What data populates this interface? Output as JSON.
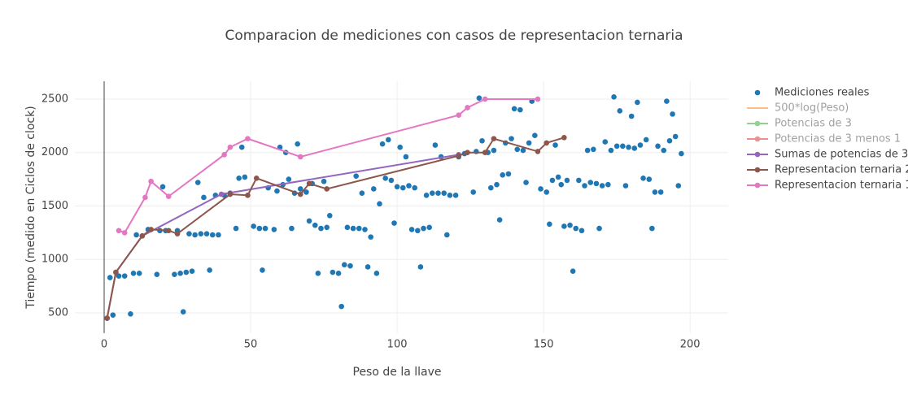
{
  "chart_data": {
    "type": "scatter",
    "title": "Comparacion de mediciones  con casos  de  representacion ternaria",
    "xlabel": "Peso de la llave",
    "ylabel": "Tiempo (medido en Ciclos de clock)",
    "xlim": [
      -10,
      213
    ],
    "ylim": [
      310,
      2667
    ],
    "xticks": [
      0,
      50,
      100,
      150,
      200
    ],
    "yticks": [
      500,
      1000,
      1500,
      2000,
      2500
    ],
    "grid": true,
    "legend": "right",
    "series": [
      {
        "name": "Mediciones reales",
        "color": "#1f77b4",
        "mode": "markers",
        "x": [
          1,
          2,
          3,
          5,
          7,
          9,
          10,
          11,
          12,
          15,
          18,
          19,
          20,
          21,
          24,
          25,
          26,
          27,
          28,
          29,
          30,
          31,
          32,
          33,
          34,
          35,
          36,
          37,
          38,
          39,
          41,
          43,
          45,
          46,
          47,
          48,
          51,
          53,
          54,
          55,
          56,
          58,
          59,
          60,
          61,
          62,
          63,
          64,
          65,
          66,
          67,
          69,
          70,
          71,
          72,
          73,
          74,
          75,
          76,
          77,
          78,
          80,
          81,
          82,
          83,
          84,
          85,
          86,
          87,
          88,
          89,
          90,
          91,
          92,
          93,
          94,
          95,
          96,
          97,
          98,
          99,
          100,
          101,
          102,
          103,
          104,
          105,
          106,
          107,
          108,
          109,
          110,
          111,
          112,
          113,
          114,
          115,
          116,
          117,
          118,
          120,
          121,
          123,
          126,
          127,
          128,
          129,
          131,
          132,
          133,
          134,
          135,
          136,
          137,
          138,
          139,
          140,
          141,
          142,
          143,
          144,
          145,
          146,
          147,
          149,
          151,
          152,
          153,
          154,
          155,
          156,
          157,
          158,
          159,
          160,
          161,
          162,
          163,
          164,
          165,
          166,
          167,
          168,
          169,
          170,
          171,
          172,
          173,
          174,
          175,
          176,
          177,
          178,
          179,
          180,
          181,
          182,
          183,
          184,
          185,
          186,
          187,
          188,
          189,
          190,
          191,
          192,
          193,
          194,
          195,
          196,
          197
        ],
        "values": [
          450,
          830,
          480,
          845,
          845,
          490,
          870,
          1230,
          870,
          1280,
          860,
          1270,
          1680,
          1270,
          860,
          1270,
          870,
          510,
          880,
          1240,
          890,
          1230,
          1720,
          1240,
          1580,
          1240,
          900,
          1230,
          1600,
          1230,
          1600,
          1620,
          1290,
          1760,
          2050,
          1770,
          1310,
          1290,
          900,
          1290,
          1670,
          1280,
          1640,
          2050,
          1700,
          2000,
          1750,
          1290,
          1620,
          2080,
          1660,
          1630,
          1360,
          1710,
          1320,
          870,
          1290,
          1730,
          1300,
          1410,
          880,
          870,
          560,
          950,
          1300,
          940,
          1290,
          1780,
          1290,
          1620,
          1280,
          930,
          1210,
          1660,
          870,
          1520,
          2080,
          1760,
          2120,
          1740,
          1340,
          1680,
          2050,
          1670,
          1960,
          1690,
          1280,
          1670,
          1270,
          930,
          1290,
          1600,
          1300,
          1620,
          2070,
          1620,
          1960,
          1620,
          1230,
          1600,
          1600,
          1960,
          1990,
          1630,
          2010,
          2510,
          2110,
          2000,
          1670,
          2020,
          1700,
          1370,
          1790,
          2090,
          1800,
          2130,
          2410,
          2030,
          2400,
          2020,
          1720,
          2090,
          2480,
          2160,
          1660,
          1630,
          1330,
          1740,
          2070,
          1770,
          1700,
          1310,
          1740,
          1320,
          890,
          1290,
          1740,
          1270,
          1690,
          2020,
          1720,
          2030,
          1710,
          1290,
          1690,
          2100,
          1700,
          2020,
          2520,
          2060,
          2390,
          2060,
          1690,
          2050,
          2340,
          2040,
          2470,
          2070,
          1760,
          2120,
          1750,
          1290,
          1630,
          2060,
          1630,
          2020,
          2480,
          2110,
          2360,
          2150,
          1690,
          1990
        ]
      },
      {
        "name": "500*log(Peso)",
        "color": "#ff7f0e",
        "mode": "lines",
        "visible": "legendonly"
      },
      {
        "name": "Potencias de 3",
        "color": "#2ca02c",
        "mode": "lines+markers",
        "visible": "legendonly"
      },
      {
        "name": "Potencias de 3 menos 1",
        "color": "#d62728",
        "mode": "lines+markers",
        "visible": "legendonly"
      },
      {
        "name": "Sumas de potencias de 3",
        "color": "#9467bd",
        "mode": "lines+markers",
        "x": [
          1,
          4,
          13,
          40,
          121
        ],
        "values": [
          450,
          880,
          1220,
          1610,
          1980
        ]
      },
      {
        "name": "Representacion ternaria 2",
        "color": "#8c564b",
        "mode": "lines+markers",
        "x": [
          1,
          4,
          13,
          16,
          22,
          25,
          43,
          49,
          52,
          67,
          70,
          76,
          121,
          124,
          130,
          133,
          148,
          151,
          157
        ],
        "values": [
          450,
          880,
          1220,
          1280,
          1270,
          1240,
          1610,
          1600,
          1760,
          1610,
          1710,
          1660,
          1970,
          2000,
          2000,
          2130,
          2010,
          2090,
          2140
        ]
      },
      {
        "name": "Representacion ternaria 1",
        "color": "#e377c2",
        "mode": "lines+markers",
        "x": [
          5,
          7,
          14,
          16,
          22,
          41,
          43,
          49,
          67,
          121,
          124,
          130,
          148
        ],
        "values": [
          1270,
          1250,
          1580,
          1730,
          1590,
          1980,
          2050,
          2130,
          1960,
          2350,
          2420,
          2500,
          2500
        ]
      }
    ]
  }
}
